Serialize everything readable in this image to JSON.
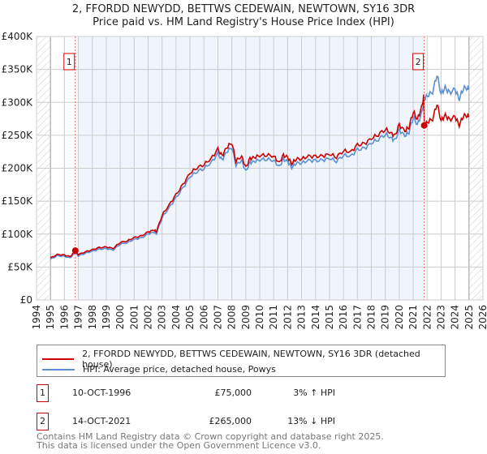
{
  "chart_data": {
    "type": "line",
    "title": "2, FFORDD NEWYDD, BETTWS CEDEWAIN, NEWTOWN, SY16 3DR",
    "subtitle": "Price paid vs. HM Land Registry's House Price Index (HPI)",
    "xlim": [
      1994,
      2026
    ],
    "ylim": [
      0,
      400000
    ],
    "x_ticks": [
      "1994",
      "1995",
      "1996",
      "1997",
      "1998",
      "1999",
      "2000",
      "2001",
      "2002",
      "2003",
      "2004",
      "2005",
      "2006",
      "2007",
      "2008",
      "2009",
      "2010",
      "2011",
      "2012",
      "2013",
      "2014",
      "2015",
      "2016",
      "2017",
      "2018",
      "2019",
      "2020",
      "2021",
      "2022",
      "2023",
      "2024",
      "2025",
      "2026"
    ],
    "y_ticks": [
      {
        "v": 0,
        "label": "£0"
      },
      {
        "v": 50000,
        "label": "£50K"
      },
      {
        "v": 100000,
        "label": "£100K"
      },
      {
        "v": 150000,
        "label": "£150K"
      },
      {
        "v": 200000,
        "label": "£200K"
      },
      {
        "v": 250000,
        "label": "£250K"
      },
      {
        "v": 300000,
        "label": "£300K"
      },
      {
        "v": 350000,
        "label": "£350K"
      },
      {
        "v": 400000,
        "label": "£400K"
      }
    ],
    "grid": true,
    "series": [
      {
        "name": "2, FFORDD NEWYDD, BETTWS CEDEWAIN, NEWTOWN, SY16 3DR (detached house)",
        "color": "#cc0000",
        "derived_from_hpi": true,
        "ratio_before_sale2": 1.03,
        "ratio_after_sale2": 0.87
      },
      {
        "name": "HPI: Average price, detached house, Powys",
        "color": "#5b8fd4",
        "x": [
          1995,
          1995.5,
          1996,
          1996.4,
          1996.8,
          1997,
          1997.5,
          1998,
          1998.5,
          1999,
          1999.5,
          2000,
          2000.5,
          2001,
          2001.5,
          2002,
          2002.4,
          2002.6,
          2003,
          2003.5,
          2004,
          2004.5,
          2005,
          2005.5,
          2006,
          2006.5,
          2007,
          2007.3,
          2007.6,
          2008,
          2008.3,
          2008.7,
          2009,
          2009.3,
          2009.6,
          2010,
          2010.5,
          2011,
          2011.4,
          2011.7,
          2012,
          2012.3,
          2012.6,
          2013,
          2013.5,
          2014,
          2014.5,
          2015,
          2015.5,
          2016,
          2016.5,
          2017,
          2017.5,
          2018,
          2018.5,
          2019,
          2019.4,
          2019.7,
          2020,
          2020.4,
          2020.7,
          2021,
          2021.3,
          2021.6,
          2021.8,
          2022,
          2022.4,
          2022.7,
          2023,
          2023.3,
          2023.6,
          2024,
          2024.3,
          2024.6,
          2024.9,
          2025
        ],
        "y": [
          62000,
          67000,
          66000,
          64000,
          72000,
          67000,
          71000,
          74000,
          77000,
          78000,
          76000,
          85000,
          87000,
          92000,
          94000,
          100000,
          103000,
          101000,
          125000,
          140000,
          155000,
          170000,
          187000,
          195000,
          200000,
          208000,
          222000,
          212000,
          224000,
          232000,
          205000,
          212000,
          195000,
          208000,
          210000,
          213000,
          214000,
          212000,
          202000,
          213000,
          210000,
          201000,
          208000,
          208000,
          212000,
          211000,
          212000,
          215000,
          211000,
          220000,
          218000,
          228000,
          230000,
          238000,
          244000,
          252000,
          246000,
          242000,
          258000,
          249000,
          255000,
          278000,
          266000,
          283000,
          305000,
          310000,
          316000,
          343000,
          313000,
          322000,
          314000,
          320000,
          305000,
          322000,
          322000,
          322000
        ]
      }
    ],
    "annotations": [
      {
        "id": "1",
        "x": 1996.78,
        "y": 75000,
        "date": "10-OCT-1996",
        "price": "£75,000",
        "hpi_diff": "3% ↑ HPI"
      },
      {
        "id": "2",
        "x": 2021.79,
        "y": 265000,
        "date": "14-OCT-2021",
        "price": "£265,000",
        "hpi_diff": "13% ↓ HPI"
      }
    ]
  },
  "title_line1": "2, FFORDD NEWYDD, BETTWS CEDEWAIN, NEWTOWN, SY16 3DR",
  "title_line2": "Price paid vs. HM Land Registry's House Price Index (HPI)",
  "legend": {
    "red": "2, FFORDD NEWYDD, BETTWS CEDEWAIN, NEWTOWN, SY16 3DR (detached house)",
    "blue": "HPI: Average price, detached house, Powys"
  },
  "footer": {
    "line1": "Contains HM Land Registry data © Crown copyright and database right 2025.",
    "line2": "This data is licensed under the Open Government Licence v3.0."
  }
}
